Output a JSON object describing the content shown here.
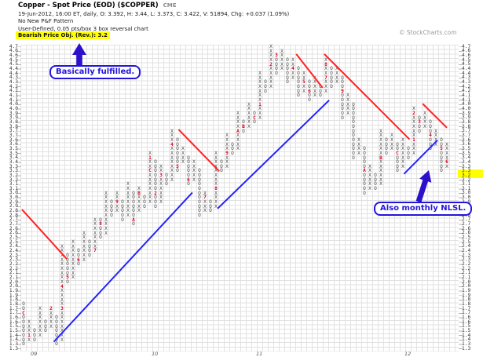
{
  "header": {
    "title": "Copper - Spot Price (EOD) ($COPPER)",
    "exchange": "CME",
    "quote_line": "19-Jun-2012, 16:00 ET, daily, O: 3.392, H: 3.44, L: 3.373, C: 3.422, V: 51894, Chg: +0.037 (1.09%)",
    "pattern_line": "No New P&F Pattern",
    "settings_line": "User-Defined, 0.05 pts/box 3 box reversal chart",
    "objective_line": "Bearish Price Obj. (Rev.): 3.2",
    "copyright": "© StockCharts.com"
  },
  "annotations": {
    "top_callout": "Basically fulfilled.",
    "bottom_callout": "Also monthly NLSL."
  },
  "colors": {
    "highlight": "#ffff00",
    "callout_blue": "#2214dd",
    "trend_red": "#ff2222",
    "trend_blue": "#2222ff",
    "month_marker": "#cc0022",
    "axis_red": "#cc0000",
    "glyph": "#4d4d4d"
  },
  "chart_data": {
    "type": "point-and-figure",
    "symbol": "$COPPER",
    "box_size": 0.05,
    "reversal": 3,
    "price_min": 1.25,
    "price_max": 4.65,
    "current_close": 3.422,
    "last_price_marker": "◄3.422",
    "price_objective_label": "3.2 PO",
    "price_objective": 3.2,
    "highlighted_axis_rows": [
      3.25,
      3.2
    ],
    "red_left_axis_values": [
      3.4,
      3.2
    ],
    "year_labels": [
      {
        "text": "09",
        "col": 2
      },
      {
        "text": "10",
        "col": 24
      },
      {
        "text": "11",
        "col": 43
      },
      {
        "text": "12",
        "col": 70
      }
    ],
    "columns": [
      {
        "t": "O",
        "lo": 1.3,
        "hi": 1.75,
        "m": {
          "165": "C"
        }
      },
      {
        "t": "X",
        "lo": 1.35,
        "hi": 1.55,
        "m": {
          "140": "1"
        }
      },
      {
        "t": "O",
        "lo": 1.35,
        "hi": 1.45
      },
      {
        "t": "X",
        "lo": 1.4,
        "hi": 1.7
      },
      {
        "t": "O",
        "lo": 1.45,
        "hi": 1.55
      },
      {
        "t": "X",
        "lo": 1.5,
        "hi": 1.7,
        "m": {
          "170": "2"
        }
      },
      {
        "t": "O",
        "lo": 1.3,
        "hi": 1.6
      },
      {
        "t": "X",
        "lo": 1.35,
        "hi": 2.4,
        "m": {
          "170": "3",
          "195": "4"
        }
      },
      {
        "t": "O",
        "lo": 2.0,
        "hi": 2.3,
        "m": {
          "205": "5"
        }
      },
      {
        "t": "X",
        "lo": 2.05,
        "hi": 2.45
      },
      {
        "t": "O",
        "lo": 2.2,
        "hi": 2.35,
        "m": {
          "225": "6"
        }
      },
      {
        "t": "X",
        "lo": 2.25,
        "hi": 2.55
      },
      {
        "t": "O",
        "lo": 2.3,
        "hi": 2.45
      },
      {
        "t": "X",
        "lo": 2.35,
        "hi": 2.7,
        "m": {
          "235": "7"
        }
      },
      {
        "t": "O",
        "lo": 2.5,
        "hi": 2.7,
        "m": {
          "265": "8"
        }
      },
      {
        "t": "X",
        "lo": 2.55,
        "hi": 3.0
      },
      {
        "t": "O",
        "lo": 2.75,
        "hi": 2.9
      },
      {
        "t": "X",
        "lo": 2.8,
        "hi": 3.0,
        "m": {
          "290": "9"
        }
      },
      {
        "t": "O",
        "lo": 2.7,
        "hi": 2.9
      },
      {
        "t": "X",
        "lo": 2.75,
        "hi": 3.1
      },
      {
        "t": "O",
        "lo": 2.65,
        "hi": 3.0,
        "m": {
          "270": "A"
        }
      },
      {
        "t": "X",
        "lo": 2.8,
        "hi": 3.05,
        "m": {
          "300": "B"
        }
      },
      {
        "t": "O",
        "lo": 2.85,
        "hi": 2.95
      },
      {
        "t": "X",
        "lo": 2.9,
        "hi": 3.45,
        "m": {
          "325": "C",
          "340": "1"
        }
      },
      {
        "t": "O",
        "lo": 2.85,
        "hi": 3.35,
        "m": {
          "300": "2"
        }
      },
      {
        "t": "X",
        "lo": 2.9,
        "hi": 3.3,
        "m": {
          "320": "3"
        }
      },
      {
        "t": "O",
        "lo": 3.1,
        "hi": 3.2
      },
      {
        "t": "X",
        "lo": 3.15,
        "hi": 3.7,
        "m": {
          "355": "4"
        }
      },
      {
        "t": "O",
        "lo": 3.25,
        "hi": 3.6,
        "m": {
          "330": "5"
        }
      },
      {
        "t": "X",
        "lo": 3.35,
        "hi": 3.5
      },
      {
        "t": "O",
        "lo": 3.1,
        "hi": 3.4,
        "m": {
          "315": "6"
        }
      },
      {
        "t": "X",
        "lo": 3.15,
        "hi": 3.35
      },
      {
        "t": "O",
        "lo": 2.75,
        "hi": 3.25
      },
      {
        "t": "X",
        "lo": 2.8,
        "hi": 3.0,
        "m": {
          "295": "7"
        }
      },
      {
        "t": "O",
        "lo": 2.8,
        "hi": 2.9
      },
      {
        "t": "X",
        "lo": 2.85,
        "hi": 3.45,
        "m": {
          "305": "8"
        }
      },
      {
        "t": "O",
        "lo": 3.25,
        "hi": 3.35
      },
      {
        "t": "X",
        "lo": 3.3,
        "hi": 3.65,
        "m": {
          "345": "9"
        }
      },
      {
        "t": "O",
        "lo": 3.45,
        "hi": 3.55
      },
      {
        "t": "X",
        "lo": 3.5,
        "hi": 3.9,
        "m": {
          "370": "A"
        }
      },
      {
        "t": "O",
        "lo": 3.7,
        "hi": 3.8,
        "m": {
          "375": "B"
        }
      },
      {
        "t": "X",
        "lo": 3.75,
        "hi": 4.0
      },
      {
        "t": "O",
        "lo": 3.8,
        "hi": 3.9,
        "m": {
          "385": "C"
        }
      },
      {
        "t": "X",
        "lo": 3.85,
        "hi": 4.35,
        "m": {
          "400": "1"
        }
      },
      {
        "t": "O",
        "lo": 4.15,
        "hi": 4.25
      },
      {
        "t": "X",
        "lo": 4.2,
        "hi": 4.65,
        "m": {
          "445": "2"
        }
      },
      {
        "t": "O",
        "lo": 4.35,
        "hi": 4.55,
        "m": {
          "455": "3"
        }
      },
      {
        "t": "X",
        "lo": 4.4,
        "hi": 4.6
      },
      {
        "t": "O",
        "lo": 4.25,
        "hi": 4.5
      },
      {
        "t": "X",
        "lo": 4.3,
        "hi": 4.5,
        "m": {
          "440": "4"
        }
      },
      {
        "t": "O",
        "lo": 4.1,
        "hi": 4.4
      },
      {
        "t": "X",
        "lo": 4.15,
        "hi": 4.35,
        "m": {
          "425": "5"
        }
      },
      {
        "t": "O",
        "lo": 4.05,
        "hi": 4.25,
        "m": {
          "415": "6"
        }
      },
      {
        "t": "X",
        "lo": 4.1,
        "hi": 4.3
      },
      {
        "t": "O",
        "lo": 4.1,
        "hi": 4.2
      },
      {
        "t": "X",
        "lo": 4.15,
        "hi": 4.5,
        "m": {
          "430": "7",
          "445": "8"
        }
      },
      {
        "t": "O",
        "lo": 4.2,
        "hi": 4.4
      },
      {
        "t": "X",
        "lo": 4.25,
        "hi": 4.4
      },
      {
        "t": "O",
        "lo": 3.85,
        "hi": 4.3,
        "m": {
          "415": "9"
        }
      },
      {
        "t": "X",
        "lo": 3.9,
        "hi": 4.1
      },
      {
        "t": "O",
        "lo": 3.4,
        "hi": 4.0
      },
      {
        "t": "X",
        "lo": 3.45,
        "hi": 3.6
      },
      {
        "t": "O",
        "lo": 3.0,
        "hi": 3.5,
        "m": {
          "325": "A"
        }
      },
      {
        "t": "X",
        "lo": 3.05,
        "hi": 3.3
      },
      {
        "t": "O",
        "lo": 3.05,
        "hi": 3.2
      },
      {
        "t": "X",
        "lo": 3.1,
        "hi": 3.7,
        "m": {
          "340": "B"
        }
      },
      {
        "t": "O",
        "lo": 3.45,
        "hi": 3.6
      },
      {
        "t": "X",
        "lo": 3.5,
        "hi": 3.65
      },
      {
        "t": "O",
        "lo": 3.25,
        "hi": 3.55,
        "m": {
          "345": "C"
        }
      },
      {
        "t": "X",
        "lo": 3.3,
        "hi": 3.6
      },
      {
        "t": "O",
        "lo": 3.4,
        "hi": 3.5
      },
      {
        "t": "X",
        "lo": 3.45,
        "hi": 3.95,
        "m": {
          "360": "1",
          "390": "2"
        }
      },
      {
        "t": "O",
        "lo": 3.7,
        "hi": 3.85,
        "m": {
          "380": "3"
        }
      },
      {
        "t": "X",
        "lo": 3.75,
        "hi": 3.9
      },
      {
        "t": "O",
        "lo": 3.5,
        "hi": 3.8,
        "m": {
          "365": "4"
        }
      },
      {
        "t": "X",
        "lo": 3.55,
        "hi": 3.7
      },
      {
        "t": "O",
        "lo": 3.25,
        "hi": 3.6,
        "m": {
          "350": "5"
        }
      },
      {
        "t": "X",
        "lo": 3.3,
        "hi": 3.55,
        "m": {
          "335": "6"
        }
      }
    ],
    "trendlines": [
      {
        "color": "red",
        "c1": -0.3,
        "p1": 2.82,
        "c2": 7.9,
        "p2": 2.26
      },
      {
        "color": "blue",
        "c1": 5.5,
        "p1": 1.33,
        "c2": 30.7,
        "p2": 3.01
      },
      {
        "color": "blue",
        "c1": 35.3,
        "p1": 2.83,
        "c2": 55.6,
        "p2": 4.05
      },
      {
        "color": "red",
        "c1": 28.2,
        "p1": 3.72,
        "c2": 35.6,
        "p2": 3.25
      },
      {
        "color": "red",
        "c1": 49.6,
        "p1": 4.57,
        "c2": 54.4,
        "p2": 4.19
      },
      {
        "color": "red",
        "c1": 54.7,
        "p1": 4.57,
        "c2": 70.2,
        "p2": 3.61
      },
      {
        "color": "blue",
        "c1": 69.2,
        "p1": 3.22,
        "c2": 75.3,
        "p2": 3.6
      },
      {
        "color": "red",
        "c1": 72.6,
        "p1": 4.01,
        "c2": 77.0,
        "p2": 3.74
      }
    ]
  }
}
